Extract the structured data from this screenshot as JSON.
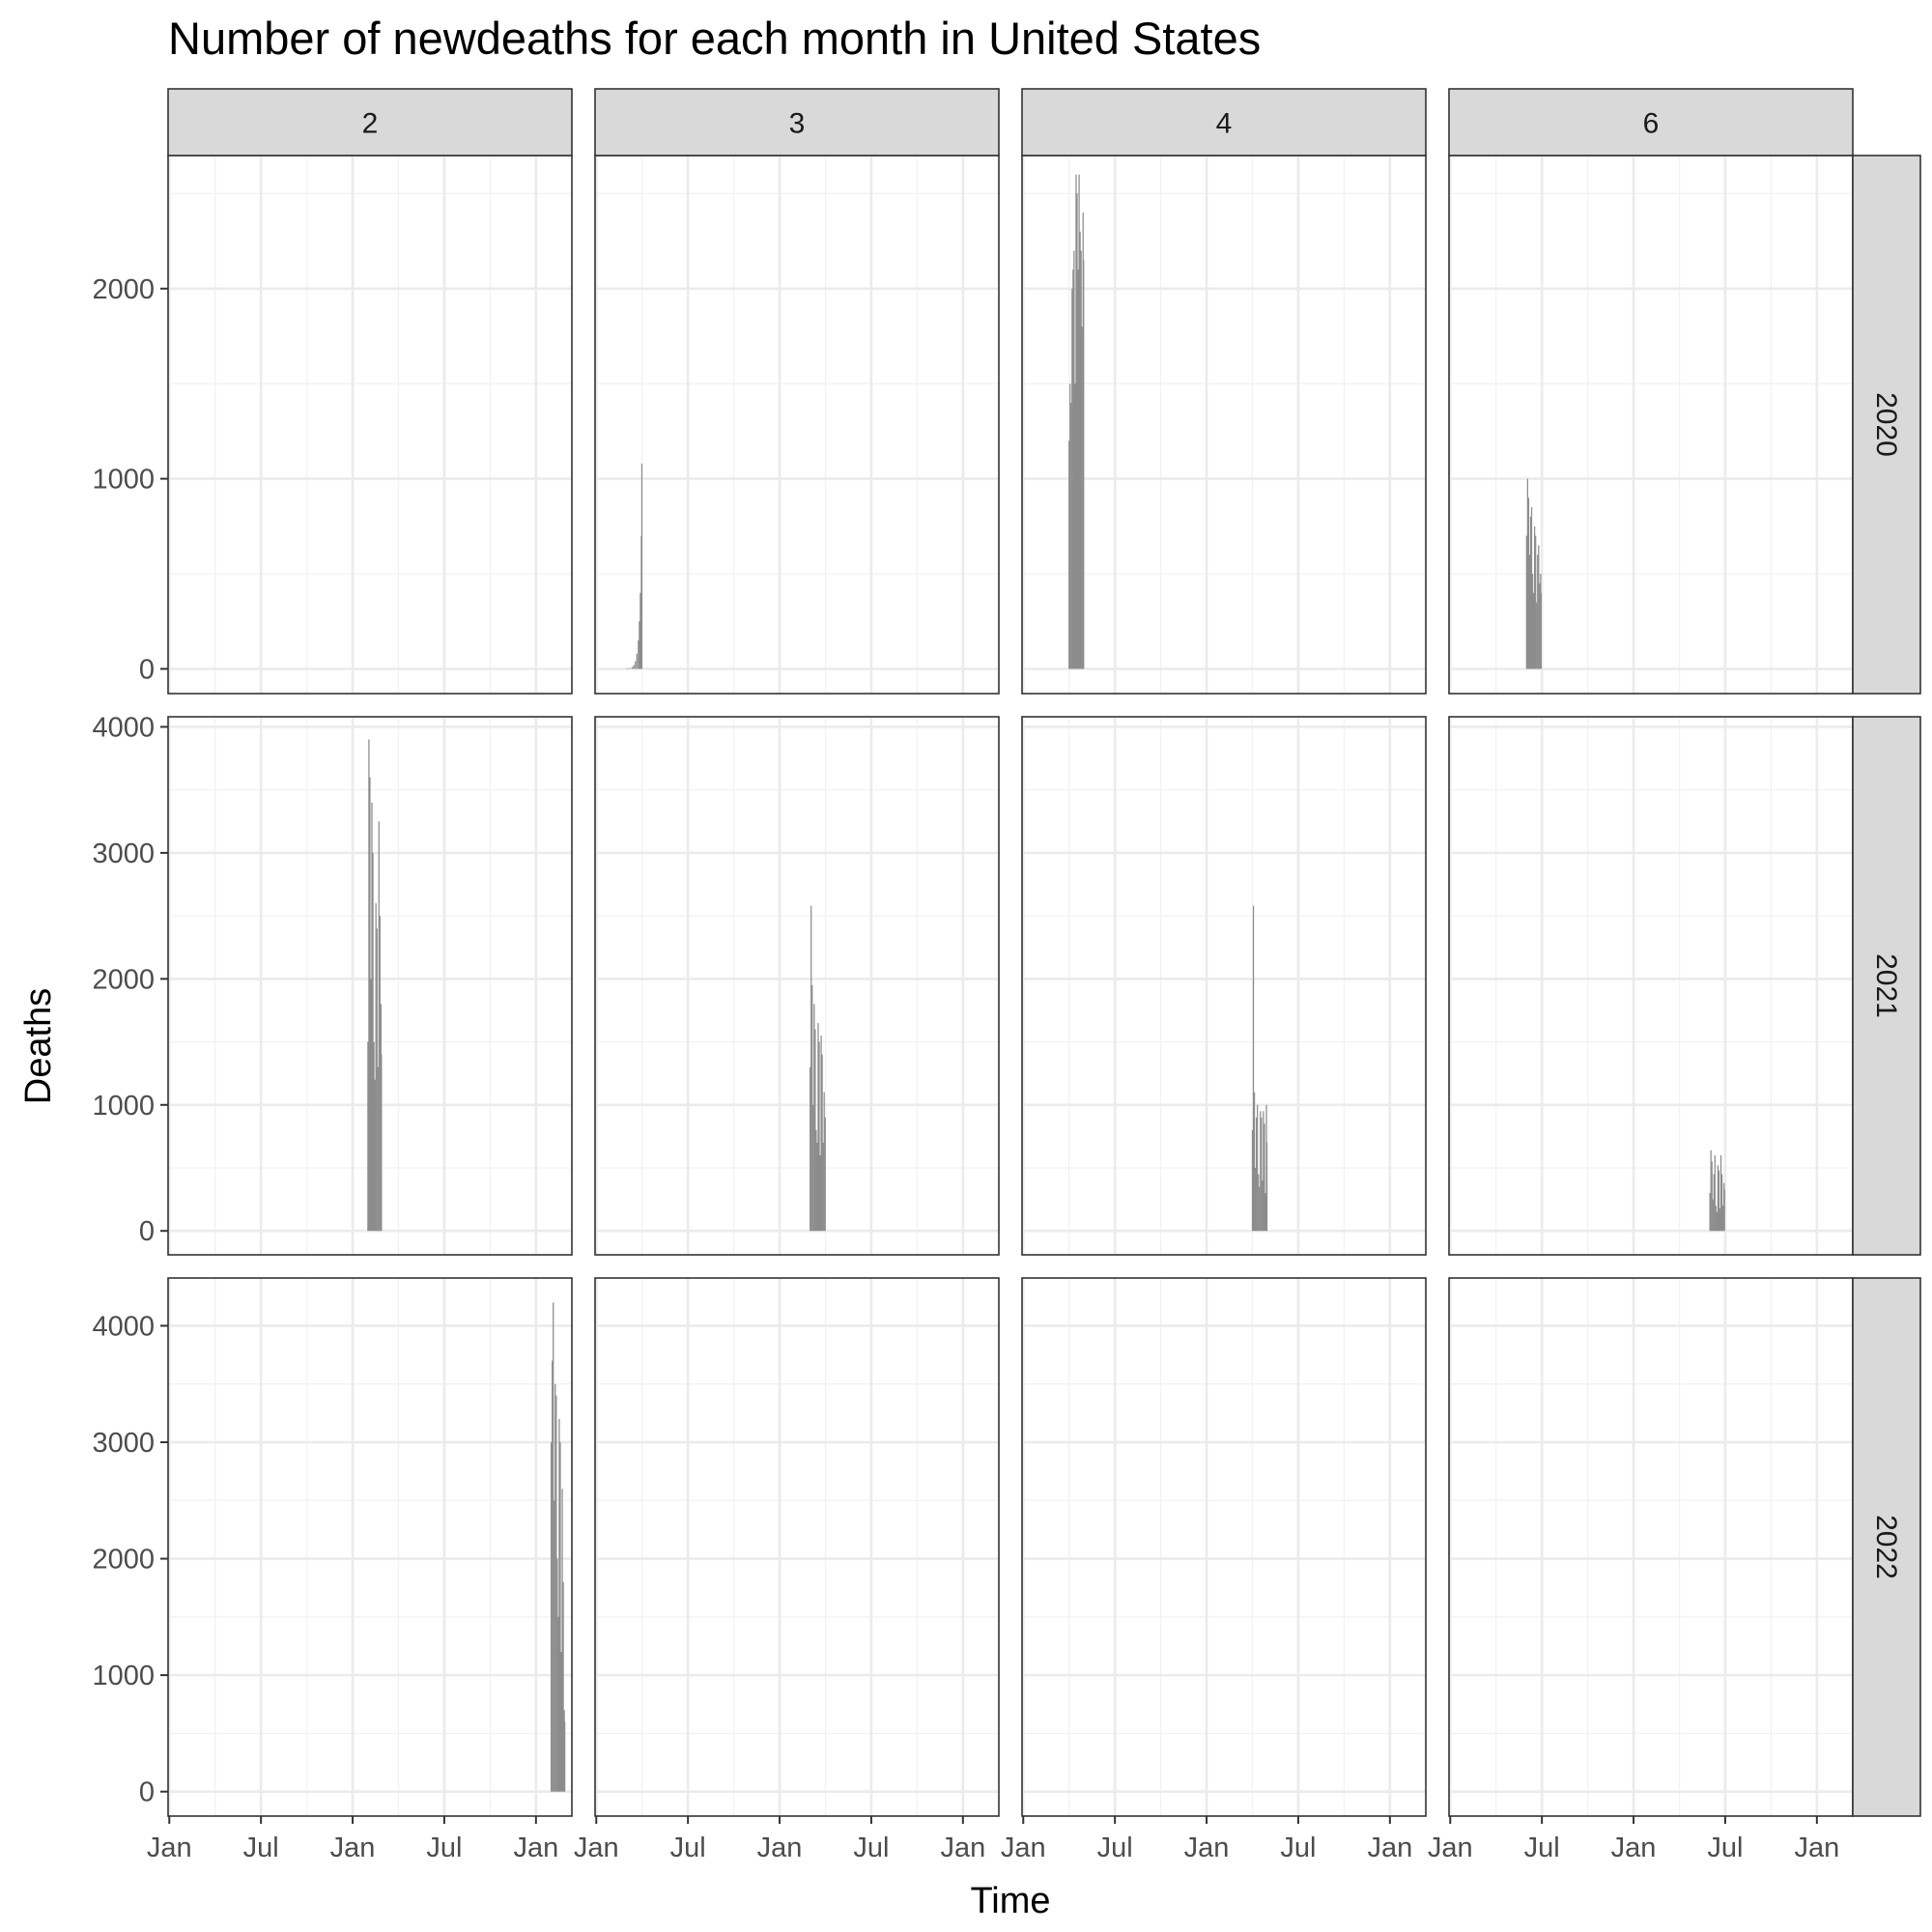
{
  "chart_data": {
    "type": "bar",
    "title": "Number of newdeaths for each month in United States",
    "xlabel": "Time",
    "ylabel": "Deaths",
    "facet_cols": [
      "2",
      "3",
      "4",
      "6"
    ],
    "facet_rows": [
      "2020",
      "2021",
      "2022"
    ],
    "x_ticks": [
      "Jan",
      "Jul",
      "Jan",
      "Jul",
      "Jan"
    ],
    "x_range": [
      "2020-01",
      "2022-03"
    ],
    "grid": true,
    "bar_color": "#8c8c8c",
    "rows": [
      {
        "year": "2020",
        "ylim": [
          -130,
          2700
        ],
        "y_ticks": [
          0,
          1000,
          2000
        ],
        "panels": [
          {
            "month": "2",
            "x": [],
            "values": []
          },
          {
            "month": "3",
            "x": [
              "2020-03-01",
              "2020-03-04",
              "2020-03-08",
              "2020-03-12",
              "2020-03-15",
              "2020-03-18",
              "2020-03-21",
              "2020-03-24",
              "2020-03-26",
              "2020-03-28",
              "2020-03-30",
              "2020-03-31"
            ],
            "values": [
              1,
              2,
              5,
              10,
              20,
              40,
              80,
              150,
              250,
              400,
              700,
              1080
            ]
          },
          {
            "month": "4",
            "x": [
              "2020-04-01",
              "2020-04-03",
              "2020-04-05",
              "2020-04-07",
              "2020-04-09",
              "2020-04-11",
              "2020-04-13",
              "2020-04-15",
              "2020-04-17",
              "2020-04-19",
              "2020-04-21",
              "2020-04-23",
              "2020-04-25",
              "2020-04-27",
              "2020-04-29",
              "2020-04-30"
            ],
            "values": [
              1200,
              1500,
              1400,
              2000,
              2100,
              2200,
              1500,
              2600,
              2500,
              2100,
              2600,
              2300,
              2200,
              1800,
              2400,
              2150
            ]
          },
          {
            "month": "6",
            "x": [
              "2020-06-01",
              "2020-06-03",
              "2020-06-05",
              "2020-06-07",
              "2020-06-09",
              "2020-06-11",
              "2020-06-13",
              "2020-06-15",
              "2020-06-17",
              "2020-06-19",
              "2020-06-21",
              "2020-06-23",
              "2020-06-25",
              "2020-06-27",
              "2020-06-29",
              "2020-06-30"
            ],
            "values": [
              700,
              1000,
              900,
              600,
              800,
              850,
              500,
              400,
              750,
              700,
              350,
              600,
              650,
              450,
              500,
              400
            ]
          }
        ]
      },
      {
        "year": "2021",
        "ylim": [
          -190,
          4080
        ],
        "y_ticks": [
          0,
          1000,
          2000,
          3000,
          4000
        ],
        "panels": [
          {
            "month": "2",
            "x": [
              "2021-02-01",
              "2021-02-03",
              "2021-02-05",
              "2021-02-07",
              "2021-02-09",
              "2021-02-11",
              "2021-02-13",
              "2021-02-15",
              "2021-02-17",
              "2021-02-19",
              "2021-02-21",
              "2021-02-23",
              "2021-02-25",
              "2021-02-27",
              "2021-02-28"
            ],
            "values": [
              1500,
              3900,
              3600,
              2000,
              3400,
              3000,
              1500,
              1200,
              2600,
              2400,
              1300,
              3250,
              2500,
              1800,
              1400
            ]
          },
          {
            "month": "3",
            "x": [
              "2021-03-01",
              "2021-03-03",
              "2021-03-05",
              "2021-03-07",
              "2021-03-09",
              "2021-03-11",
              "2021-03-13",
              "2021-03-15",
              "2021-03-17",
              "2021-03-19",
              "2021-03-21",
              "2021-03-23",
              "2021-03-25",
              "2021-03-27",
              "2021-03-29",
              "2021-03-31"
            ],
            "values": [
              1300,
              2580,
              1950,
              1000,
              1800,
              1600,
              800,
              700,
              1650,
              1500,
              600,
              1550,
              1400,
              700,
              1100,
              900
            ]
          },
          {
            "month": "4",
            "x": [
              "2021-04-01",
              "2021-04-03",
              "2021-04-05",
              "2021-04-07",
              "2021-04-09",
              "2021-04-11",
              "2021-04-13",
              "2021-04-15",
              "2021-04-17",
              "2021-04-19",
              "2021-04-21",
              "2021-04-23",
              "2021-04-25",
              "2021-04-27",
              "2021-04-29",
              "2021-04-30"
            ],
            "values": [
              800,
              2580,
              1100,
              500,
              900,
              1000,
              450,
              350,
              950,
              900,
              400,
              950,
              850,
              300,
              1000,
              700
            ]
          },
          {
            "month": "6",
            "x": [
              "2021-06-01",
              "2021-06-03",
              "2021-06-05",
              "2021-06-07",
              "2021-06-09",
              "2021-06-11",
              "2021-06-13",
              "2021-06-15",
              "2021-06-17",
              "2021-06-19",
              "2021-06-21",
              "2021-06-23",
              "2021-06-25",
              "2021-06-27",
              "2021-06-29",
              "2021-06-30"
            ],
            "values": [
              300,
              640,
              550,
              250,
              450,
              600,
              200,
              150,
              520,
              480,
              180,
              600,
              450,
              200,
              380,
              330
            ]
          }
        ]
      },
      {
        "year": "2022",
        "ylim": [
          -210,
          4410
        ],
        "y_ticks": [
          0,
          1000,
          2000,
          3000,
          4000
        ],
        "panels": [
          {
            "month": "2",
            "x": [
              "2022-02-01",
              "2022-02-03",
              "2022-02-05",
              "2022-02-07",
              "2022-02-09",
              "2022-02-11",
              "2022-02-13",
              "2022-02-15",
              "2022-02-17",
              "2022-02-19",
              "2022-02-21",
              "2022-02-23",
              "2022-02-25",
              "2022-02-27",
              "2022-02-28"
            ],
            "values": [
              3000,
              3700,
              4200,
              2500,
              3500,
              3400,
              2000,
              1500,
              3200,
              3000,
              1200,
              2600,
              1800,
              700,
              600
            ]
          },
          {
            "month": "3",
            "x": [],
            "values": []
          },
          {
            "month": "4",
            "x": [],
            "values": []
          },
          {
            "month": "6",
            "x": [],
            "values": []
          }
        ]
      }
    ]
  }
}
